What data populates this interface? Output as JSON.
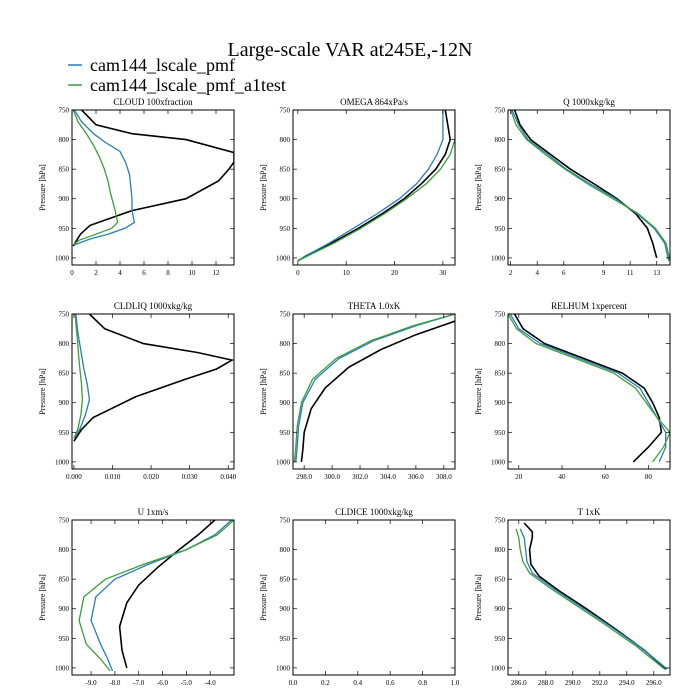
{
  "figure": {
    "title": "Large-scale VAR at245E,-12N",
    "legend": [
      {
        "name": "cam144_lscale_pmf",
        "color": "#2b7bb9"
      },
      {
        "name": "cam144_lscale_pmf_a1test",
        "color": "#3aa03a"
      }
    ],
    "reference_color": "#000000"
  },
  "chart_data": [
    {
      "type": "line",
      "title": "CLOUD 100xfraction",
      "ylabel": "Pressure [hPa]",
      "xlim": [
        0,
        13.5
      ],
      "ylim": [
        750,
        1012
      ],
      "y_reversed": true,
      "xticks": [
        0,
        2,
        4,
        6,
        8,
        10,
        12
      ],
      "xtick_labels": [
        "0",
        "2",
        "4",
        "6",
        "8",
        "10",
        "12"
      ],
      "yticks": [
        750,
        800,
        850,
        900,
        950,
        1000
      ],
      "ytick_labels": [
        "750",
        "800",
        "850",
        "900",
        "950",
        "1000"
      ],
      "series": [
        {
          "color": "#000000",
          "x": [
            0.8,
            2.0,
            5.0,
            9.5,
            13.5,
            13.5,
            13.0,
            12.2,
            9.5,
            5.0,
            1.5,
            0.7,
            0.1
          ],
          "y": [
            750,
            775,
            790,
            800,
            822,
            838,
            852,
            870,
            900,
            920,
            945,
            960,
            980
          ]
        },
        {
          "color": "#2b7bb9",
          "x": [
            0.2,
            0.8,
            1.8,
            2.8,
            4.0,
            4.5,
            4.8,
            4.9,
            5.0,
            5.0,
            5.2,
            4.4,
            3.0,
            1.5,
            0.2
          ],
          "y": [
            750,
            770,
            790,
            805,
            820,
            840,
            860,
            880,
            900,
            920,
            940,
            950,
            960,
            968,
            978
          ]
        },
        {
          "color": "#3aa03a",
          "x": [
            0.1,
            0.5,
            1.2,
            1.8,
            2.3,
            2.7,
            3.0,
            3.2,
            3.4,
            3.6,
            3.8,
            3.3,
            2.0,
            0.6,
            0.1
          ],
          "y": [
            750,
            770,
            790,
            810,
            830,
            850,
            870,
            890,
            905,
            920,
            940,
            950,
            960,
            970,
            978
          ]
        }
      ]
    },
    {
      "type": "line",
      "title": "OMEGA 864xPa/s",
      "ylabel": "Pressure [hPa]",
      "xlim": [
        -1,
        32.5
      ],
      "ylim": [
        750,
        1012
      ],
      "y_reversed": true,
      "xticks": [
        0,
        10,
        20,
        30
      ],
      "xtick_labels": [
        "0",
        "10",
        "20",
        "30"
      ],
      "yticks": [
        750,
        800,
        850,
        900,
        950,
        1000
      ],
      "ytick_labels": [
        "750",
        "800",
        "850",
        "900",
        "950",
        "1000"
      ],
      "series": [
        {
          "color": "#000000",
          "x": [
            30.5,
            31.5,
            30.5,
            28.5,
            25.5,
            22.0,
            17.5,
            12.5,
            7.0,
            2.0,
            0.0
          ],
          "y": [
            750,
            800,
            825,
            850,
            875,
            900,
            925,
            950,
            975,
            995,
            1005
          ]
        },
        {
          "color": "#2b7bb9",
          "x": [
            30.0,
            30.0,
            28.8,
            27.0,
            24.5,
            21.0,
            16.5,
            11.5,
            6.5,
            2.0,
            0.0
          ],
          "y": [
            750,
            800,
            825,
            850,
            875,
            900,
            925,
            950,
            975,
            995,
            1005
          ]
        },
        {
          "color": "#3aa03a",
          "x": [
            32.5,
            32.5,
            31.5,
            29.5,
            26.5,
            22.5,
            18.0,
            13.0,
            7.5,
            2.5,
            0.0
          ],
          "y": [
            750,
            800,
            825,
            850,
            875,
            900,
            925,
            950,
            975,
            995,
            1005
          ]
        }
      ]
    },
    {
      "type": "line",
      "title": "Q 1000xkg/kg",
      "ylabel": "Pressure [hPa]",
      "xlim": [
        1.8,
        14.0
      ],
      "ylim": [
        750,
        1012
      ],
      "y_reversed": true,
      "xticks": [
        2,
        4,
        6,
        9,
        11,
        13
      ],
      "xtick_labels": [
        "2",
        "4",
        "6",
        "9",
        "11",
        "13"
      ],
      "yticks": [
        750,
        800,
        850,
        900,
        950,
        1000
      ],
      "ytick_labels": [
        "750",
        "800",
        "850",
        "900",
        "950",
        "1000"
      ],
      "series": [
        {
          "color": "#000000",
          "x": [
            2.3,
            2.7,
            3.5,
            5.0,
            6.5,
            8.3,
            10.0,
            11.4,
            12.3,
            12.7,
            13.0
          ],
          "y": [
            750,
            775,
            800,
            825,
            850,
            875,
            900,
            925,
            950,
            975,
            1000
          ]
        },
        {
          "color": "#2b7bb9",
          "x": [
            2.1,
            2.6,
            3.3,
            4.8,
            6.2,
            8.0,
            9.9,
            11.5,
            12.8,
            13.6,
            13.9
          ],
          "y": [
            750,
            775,
            800,
            825,
            850,
            875,
            900,
            925,
            950,
            975,
            1005
          ]
        },
        {
          "color": "#3aa03a",
          "x": [
            2.0,
            2.4,
            3.2,
            4.6,
            6.1,
            7.8,
            9.7,
            11.6,
            12.9,
            13.7,
            14.0
          ],
          "y": [
            750,
            775,
            800,
            825,
            850,
            875,
            900,
            925,
            950,
            975,
            1005
          ]
        }
      ]
    },
    {
      "type": "line",
      "title": "CLDLIQ 1000xkg/kg",
      "ylabel": "Pressure [hPa]",
      "xlim": [
        -0.0005,
        0.0415
      ],
      "ylim": [
        750,
        1012
      ],
      "y_reversed": true,
      "xticks": [
        0,
        0.01,
        0.02,
        0.03,
        0.04
      ],
      "xtick_labels": [
        "0.000",
        "0.010",
        "0.020",
        "0.030",
        "0.040"
      ],
      "yticks": [
        750,
        800,
        850,
        900,
        950,
        1000
      ],
      "ytick_labels": [
        "750",
        "800",
        "850",
        "900",
        "950",
        "1000"
      ],
      "series": [
        {
          "color": "#000000",
          "x": [
            0.004,
            0.008,
            0.018,
            0.032,
            0.041,
            0.037,
            0.029,
            0.016,
            0.005,
            0.002,
            0.0
          ],
          "y": [
            750,
            775,
            800,
            815,
            828,
            843,
            860,
            890,
            925,
            945,
            965
          ]
        },
        {
          "color": "#2b7bb9",
          "x": [
            0.0005,
            0.001,
            0.0015,
            0.002,
            0.0025,
            0.0035,
            0.004,
            0.003,
            0.0015,
            0.0
          ],
          "y": [
            750,
            780,
            800,
            820,
            840,
            870,
            895,
            920,
            945,
            960
          ]
        },
        {
          "color": "#3aa03a",
          "x": [
            0.0003,
            0.0007,
            0.001,
            0.0012,
            0.0015,
            0.002,
            0.0022,
            0.0018,
            0.001,
            0.0
          ],
          "y": [
            750,
            780,
            800,
            820,
            840,
            870,
            895,
            920,
            945,
            960
          ]
        }
      ]
    },
    {
      "type": "line",
      "title": "THETA 1.0xK",
      "ylabel": "Pressure [hPa]",
      "xlim": [
        297.2,
        308.8
      ],
      "ylim": [
        750,
        1012
      ],
      "y_reversed": true,
      "xticks": [
        298,
        300,
        302,
        304,
        306,
        308
      ],
      "xtick_labels": [
        "298.0",
        "300.0",
        "302.0",
        "304.0",
        "306.0",
        "308.0"
      ],
      "yticks": [
        750,
        800,
        850,
        900,
        950,
        1000
      ],
      "ytick_labels": [
        "750",
        "800",
        "850",
        "900",
        "950",
        "1000"
      ],
      "series": [
        {
          "color": "#000000",
          "x": [
            308.8,
            306.0,
            303.5,
            301.2,
            299.5,
            298.5,
            298.0,
            297.9,
            297.8
          ],
          "y": [
            762,
            785,
            810,
            840,
            875,
            910,
            950,
            980,
            1000
          ]
        },
        {
          "color": "#2b7bb9",
          "x": [
            308.8,
            306.0,
            303.0,
            300.5,
            298.8,
            297.9,
            297.6,
            297.5,
            297.4
          ],
          "y": [
            750,
            770,
            795,
            825,
            860,
            900,
            940,
            975,
            1000
          ]
        },
        {
          "color": "#3aa03a",
          "x": [
            308.8,
            305.8,
            302.8,
            300.3,
            298.6,
            297.8,
            297.5,
            297.4,
            297.3
          ],
          "y": [
            750,
            770,
            795,
            825,
            860,
            900,
            940,
            975,
            1000
          ]
        }
      ]
    },
    {
      "type": "line",
      "title": "RELHUM 1xpercent",
      "ylabel": "Pressure [hPa]",
      "xlim": [
        15,
        90
      ],
      "ylim": [
        750,
        1012
      ],
      "y_reversed": true,
      "xticks": [
        20,
        40,
        60,
        80
      ],
      "xtick_labels": [
        "20",
        "40",
        "60",
        "80"
      ],
      "yticks": [
        750,
        800,
        850,
        900,
        950,
        1000
      ],
      "ytick_labels": [
        "750",
        "800",
        "850",
        "900",
        "950",
        "1000"
      ],
      "series": [
        {
          "color": "#000000",
          "x": [
            18,
            22,
            32,
            50,
            68,
            78,
            82,
            85,
            86,
            80,
            73
          ],
          "y": [
            750,
            775,
            800,
            825,
            850,
            875,
            900,
            925,
            950,
            975,
            1000
          ]
        },
        {
          "color": "#2b7bb9",
          "x": [
            16,
            20,
            30,
            48,
            66,
            76,
            80,
            84,
            88,
            88,
            85
          ],
          "y": [
            750,
            775,
            800,
            825,
            850,
            875,
            900,
            925,
            950,
            975,
            1000
          ]
        },
        {
          "color": "#3aa03a",
          "x": [
            15,
            19,
            28,
            46,
            64,
            74,
            79,
            84,
            90,
            87,
            82
          ],
          "y": [
            750,
            775,
            800,
            825,
            850,
            875,
            900,
            925,
            950,
            975,
            1000
          ]
        }
      ]
    },
    {
      "type": "line",
      "title": "U 1xm/s",
      "ylabel": "Pressure [hPa]",
      "xlim": [
        -9.8,
        -3.0
      ],
      "ylim": [
        750,
        1012
      ],
      "y_reversed": true,
      "xticks": [
        -9,
        -8,
        -7,
        -6,
        -5,
        -4
      ],
      "xtick_labels": [
        "-9.0",
        "-8.0",
        "-7.0",
        "-6.0",
        "-5.0",
        "-4.0"
      ],
      "yticks": [
        750,
        800,
        850,
        900,
        950,
        1000
      ],
      "ytick_labels": [
        "750",
        "800",
        "850",
        "900",
        "950",
        "1000"
      ],
      "series": [
        {
          "color": "#000000",
          "x": [
            -3.8,
            -4.5,
            -5.3,
            -6.2,
            -7.0,
            -7.5,
            -7.8,
            -7.7,
            -7.5
          ],
          "y": [
            750,
            775,
            800,
            830,
            860,
            890,
            930,
            970,
            1000
          ]
        },
        {
          "color": "#2b7bb9",
          "x": [
            -3.1,
            -3.8,
            -5.0,
            -6.6,
            -8.0,
            -8.8,
            -9.0,
            -8.6,
            -8.3,
            -8.1
          ],
          "y": [
            750,
            775,
            800,
            825,
            850,
            880,
            920,
            960,
            985,
            1005
          ]
        },
        {
          "color": "#3aa03a",
          "x": [
            -3.0,
            -3.7,
            -5.0,
            -6.8,
            -8.4,
            -9.3,
            -9.5,
            -9.2,
            -8.6,
            -8.2
          ],
          "y": [
            750,
            775,
            800,
            825,
            850,
            880,
            920,
            960,
            985,
            1005
          ]
        }
      ]
    },
    {
      "type": "line",
      "title": "CLDICE 1000xkg/kg",
      "ylabel": "Pressure [hPa]",
      "xlim": [
        0,
        1.0
      ],
      "ylim": [
        750,
        1012
      ],
      "y_reversed": true,
      "xticks": [
        0,
        0.2,
        0.4,
        0.6,
        0.8,
        1.0
      ],
      "xtick_labels": [
        "0.0",
        "0.2",
        "0.4",
        "0.6",
        "0.8",
        "1.0"
      ],
      "yticks": [
        750,
        800,
        850,
        900,
        950,
        1000
      ],
      "ytick_labels": [
        "750",
        "800",
        "850",
        "900",
        "950",
        "1000"
      ],
      "series": []
    },
    {
      "type": "line",
      "title": "T 1xK",
      "ylabel": "Pressure [hPa]",
      "xlim": [
        285.2,
        297.2
      ],
      "ylim": [
        750,
        1012
      ],
      "y_reversed": true,
      "xticks": [
        286,
        288,
        290,
        292,
        294,
        296
      ],
      "xtick_labels": [
        "286.0",
        "288.0",
        "290.0",
        "292.0",
        "294.0",
        "296.0"
      ],
      "yticks": [
        750,
        800,
        850,
        900,
        950,
        1000
      ],
      "ytick_labels": [
        "750",
        "800",
        "850",
        "900",
        "950",
        "1000"
      ],
      "series": [
        {
          "color": "#000000",
          "x": [
            286.4,
            287.0,
            287.0,
            286.8,
            286.9,
            287.5,
            289.0,
            291.0,
            293.2,
            295.3,
            296.9
          ],
          "y": [
            755,
            770,
            780,
            800,
            825,
            845,
            870,
            900,
            935,
            970,
            1002
          ]
        },
        {
          "color": "#2b7bb9",
          "x": [
            286.1,
            286.4,
            286.5,
            286.6,
            287.0,
            288.5,
            290.5,
            292.8,
            295.0,
            297.0
          ],
          "y": [
            765,
            780,
            800,
            820,
            840,
            865,
            895,
            930,
            965,
            1002
          ]
        },
        {
          "color": "#3aa03a",
          "x": [
            285.8,
            286.0,
            286.1,
            286.3,
            286.8,
            288.3,
            290.3,
            292.6,
            294.8,
            296.8
          ],
          "y": [
            765,
            780,
            800,
            820,
            840,
            865,
            895,
            930,
            965,
            1002
          ]
        }
      ]
    }
  ]
}
